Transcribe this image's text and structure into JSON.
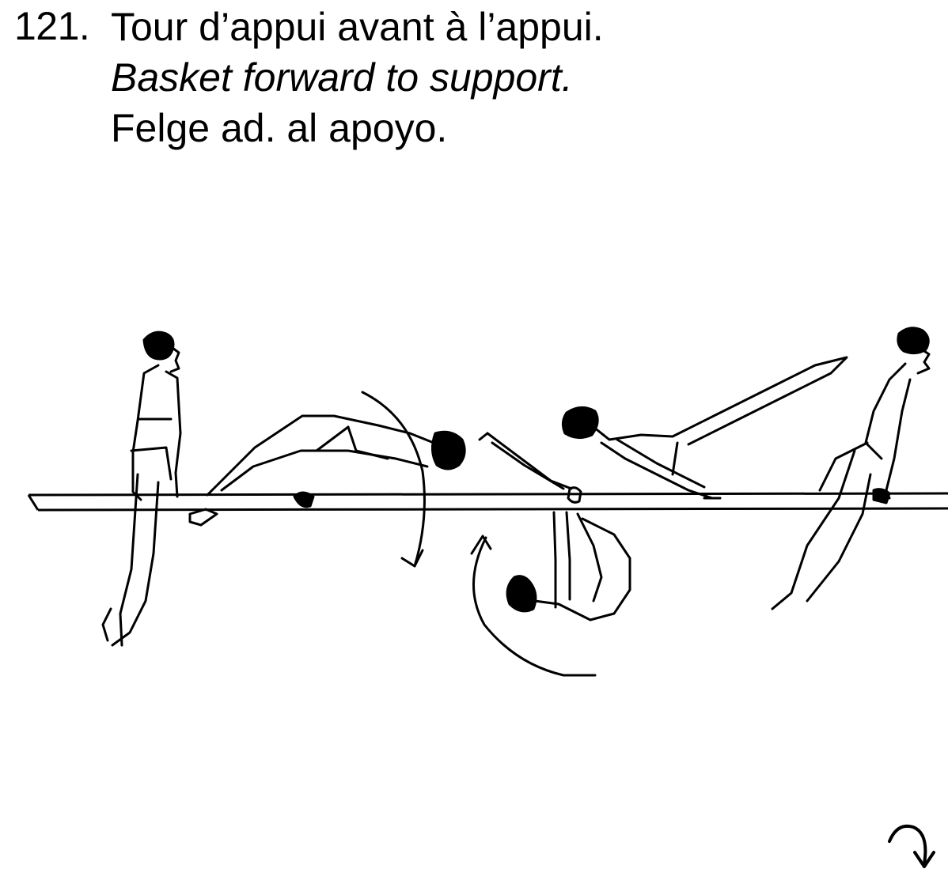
{
  "element": {
    "number": "121.",
    "name_fr": "Tour d’appui avant à l’appui.",
    "name_en": "Basket forward to support.",
    "name_es": "Felge ad. al apoyo."
  },
  "figure": {
    "description_icon": "gymnast-bar-sequence",
    "rotation_symbol": "forward-rotation-arrow-icon"
  },
  "colors": {
    "ink": "#000000",
    "paper": "#ffffff"
  }
}
